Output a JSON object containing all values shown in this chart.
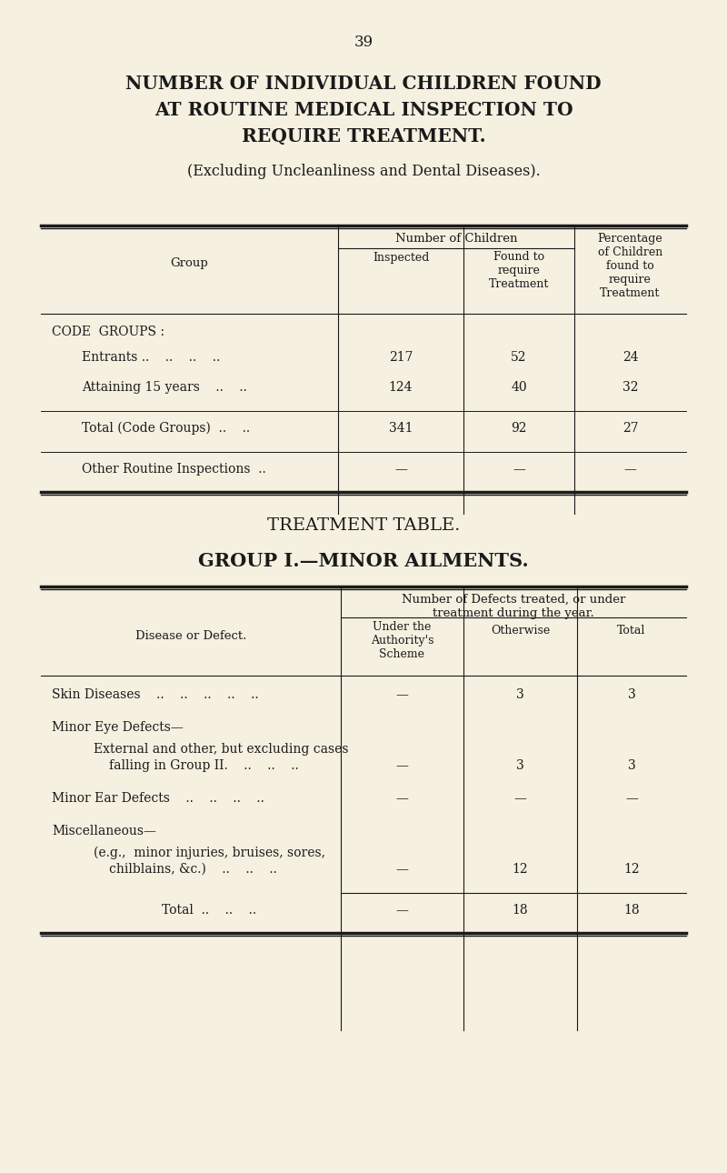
{
  "bg_color": "#f5f0e0",
  "text_color": "#1a1a1a",
  "page_number": "39",
  "title_lines": [
    "NUMBER OF INDIVIDUAL CHILDREN FOUND",
    "AT ROUTINE MEDICAL INSPECTION TO",
    "REQUIRE TREATMENT."
  ],
  "subtitle": "(Excluding Uncleanliness and Dental Diseases).",
  "section2_title1": "TREATMENT TABLE.",
  "section2_title2": "GROUP I.—MINOR AILMENTS."
}
